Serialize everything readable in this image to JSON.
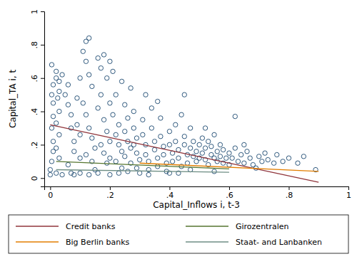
{
  "chart_data": {
    "type": "scatter",
    "x_label": "Capital_Inflows i, t-3",
    "y_label": "Capital_TA i, t",
    "xlim": [
      -0.02,
      1
    ],
    "ylim": [
      -0.05,
      1
    ],
    "xticks": [
      0,
      {
        "value": 0.2,
        "label": ".2"
      },
      {
        "value": 0.4,
        "label": ".4"
      },
      {
        "value": 0.6,
        "label": ".6"
      },
      {
        "value": 0.8,
        "label": ".8"
      },
      1
    ],
    "yticks": [
      0,
      {
        "value": 0.2,
        "label": ".2"
      },
      {
        "value": 0.4,
        "label": ".4"
      },
      {
        "value": 0.6,
        "label": ".6"
      },
      {
        "value": 0.8,
        "label": ".8"
      },
      1
    ],
    "grid": false,
    "legend": "bottom",
    "series": [
      {
        "type": "scatter",
        "marker": "circle",
        "color": "#1a476f",
        "x": [
          0,
          0,
          0.005,
          0.01,
          0.01,
          0.005,
          0.01,
          0.01,
          0.005,
          0.01,
          0.02,
          0.005,
          0.02,
          0.03,
          0.025,
          0.03,
          0.02,
          0.03,
          0.02,
          0.03,
          0.02,
          0.04,
          0.03,
          0.04,
          0.05,
          0.06,
          0.06,
          0.07,
          0.07,
          0.08,
          0.08,
          0.06,
          0.07,
          0.08,
          0.09,
          0.1,
          0.09,
          0.1,
          0.1,
          0.1,
          0.11,
          0.12,
          0.13,
          0.12,
          0.13,
          0.14,
          0.11,
          0.12,
          0.13,
          0.14,
          0.15,
          0.12,
          0.14,
          0.15,
          0.13,
          0.16,
          0.17,
          0.18,
          0.17,
          0.16,
          0.18,
          0.19,
          0.17,
          0.18,
          0.19,
          0.16,
          0.2,
          0.2,
          0.19,
          0.2,
          0.2,
          0.2,
          0.21,
          0.22,
          0.23,
          0.22,
          0.23,
          0.24,
          0.22,
          0.24,
          0.23,
          0.25,
          0.26,
          0.25,
          0.26,
          0.27,
          0.25,
          0.27,
          0.26,
          0.28,
          0.28,
          0.29,
          0.28,
          0.29,
          0.3,
          0.29,
          0.3,
          0.24,
          0.27,
          0.21,
          0.31,
          0.31,
          0.32,
          0.32,
          0.33,
          0.33,
          0.34,
          0.34,
          0.35,
          0.35,
          0.36,
          0.36,
          0.37,
          0.37,
          0.38,
          0.38,
          0.39,
          0.39,
          0.4,
          0.4,
          0.32,
          0.36,
          0.33,
          0.4,
          0.41,
          0.41,
          0.42,
          0.42,
          0.43,
          0.43,
          0.44,
          0.44,
          0.45,
          0.45,
          0.46,
          0.46,
          0.47,
          0.47,
          0.48,
          0.48,
          0.49,
          0.49,
          0.5,
          0.5,
          0.43,
          0.47,
          0.45,
          0.51,
          0.51,
          0.52,
          0.52,
          0.53,
          0.53,
          0.54,
          0.54,
          0.55,
          0.55,
          0.56,
          0.56,
          0.57,
          0.57,
          0.58,
          0.58,
          0.59,
          0.6,
          0.6,
          0.52,
          0.55,
          0.62,
          0.61,
          0.62,
          0.63,
          0.64,
          0.65,
          0.66,
          0.67,
          0.68,
          0.7,
          0.71,
          0.72,
          0.73,
          0.75,
          0.76,
          0.78,
          0.8,
          0.83,
          0.85,
          0.89,
          0.65,
          0.69
        ],
        "values": [
          0.02,
          0.05,
          0.1,
          0.16,
          0.22,
          0.3,
          0.37,
          0.45,
          0.5,
          0.56,
          0.6,
          0.68,
          0.64,
          0.58,
          0.48,
          0.4,
          0.33,
          0.26,
          0.18,
          0.12,
          0.03,
          0.02,
          0.52,
          0.62,
          0.5,
          0.56,
          0.44,
          0.38,
          0.3,
          0.22,
          0.16,
          0.08,
          0.03,
          0.02,
          0.48,
          0.6,
          0.32,
          0.26,
          0.12,
          0.03,
          0.76,
          0.82,
          0.84,
          0.7,
          0.62,
          0.55,
          0.45,
          0.38,
          0.3,
          0.24,
          0.18,
          0.14,
          0.1,
          0.05,
          0.02,
          0.72,
          0.66,
          0.74,
          0.5,
          0.42,
          0.35,
          0.28,
          0.2,
          0.15,
          0.09,
          0.03,
          0.02,
          0.7,
          0.6,
          0.45,
          0.22,
          0.12,
          0.38,
          0.5,
          0.32,
          0.26,
          0.2,
          0.16,
          0.1,
          0.06,
          0.03,
          0.44,
          0.36,
          0.28,
          0.22,
          0.18,
          0.13,
          0.09,
          0.04,
          0.4,
          0.3,
          0.24,
          0.2,
          0.15,
          0.11,
          0.06,
          0.03,
          0.58,
          0.54,
          0.64,
          0.35,
          0.26,
          0.2,
          0.14,
          0.1,
          0.05,
          0.42,
          0.3,
          0.22,
          0.17,
          0.12,
          0.07,
          0.36,
          0.25,
          0.19,
          0.14,
          0.09,
          0.04,
          0.28,
          0.2,
          0.5,
          0.46,
          0.02,
          0.03,
          0.15,
          0.1,
          0.32,
          0.22,
          0.17,
          0.12,
          0.07,
          0.38,
          0.25,
          0.2,
          0.14,
          0.09,
          0.3,
          0.18,
          0.13,
          0.22,
          0.1,
          0.16,
          0.2,
          0.12,
          0.03,
          0.05,
          0.5,
          0.24,
          0.15,
          0.18,
          0.11,
          0.22,
          0.08,
          0.14,
          0.19,
          0.12,
          0.26,
          0.16,
          0.1,
          0.2,
          0.13,
          0.09,
          0.17,
          0.12,
          0.15,
          0.08,
          0.3,
          0.04,
          0.37,
          0.12,
          0.18,
          0.1,
          0.14,
          0.09,
          0.16,
          0.12,
          0.08,
          0.13,
          0.1,
          0.15,
          0.11,
          0.09,
          0.14,
          0.1,
          0.12,
          0.09,
          0.13,
          0.05,
          0.2,
          0.06
        ]
      },
      {
        "type": "line",
        "name": "Credit banks",
        "color": "#90353b",
        "x": [
          0,
          0.9
        ],
        "values": [
          0.32,
          -0.025
        ]
      },
      {
        "type": "line",
        "name": "Girozentralen",
        "color": "#55752f",
        "x": [
          0.02,
          0.6
        ],
        "values": [
          0.1,
          0.055
        ]
      },
      {
        "type": "line",
        "name": "Big Berlin banks",
        "color": "#e37e00",
        "x": [
          0.3,
          0.9
        ],
        "values": [
          0.09,
          0.04
        ]
      },
      {
        "type": "line",
        "name": "Staat- and Lanbanken",
        "color": "#6e8e84",
        "x": [
          0.02,
          0.6
        ],
        "values": [
          0.05,
          0.035
        ]
      }
    ]
  }
}
